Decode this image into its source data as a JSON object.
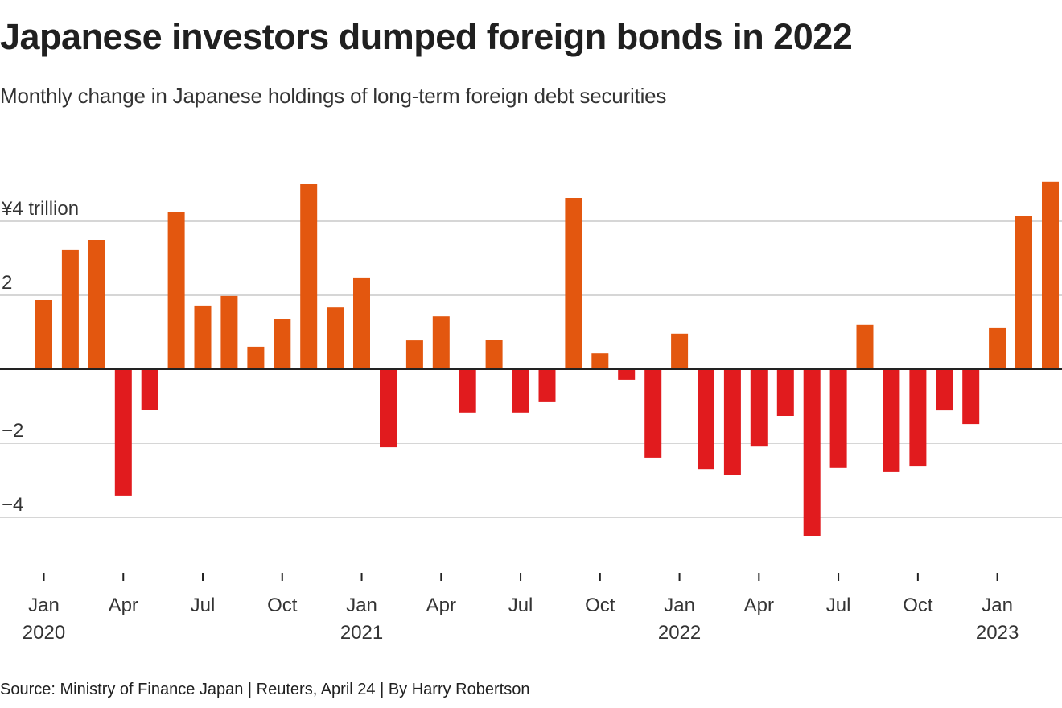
{
  "chart_data": {
    "type": "bar",
    "title": "Japanese investors dumped foreign bonds in 2022",
    "subtitle": "Monthly change in Japanese holdings of long-term foreign debt securities",
    "source": "Source: Ministry of Finance Japan | Reuters, April 24 | By Harry Robertson",
    "xlabel": "",
    "ylabel": "¥ trillion",
    "ylim": [
      -5,
      5.5
    ],
    "grid": true,
    "legend": "none",
    "y_ticks": [
      {
        "value": 4,
        "label": "¥4 trillion"
      },
      {
        "value": 2,
        "label": "2"
      },
      {
        "value": 0,
        "label": ""
      },
      {
        "value": -2,
        "label": "−2"
      },
      {
        "value": -4,
        "label": "−4"
      }
    ],
    "x_ticks": [
      {
        "index": 0,
        "label": "Jan",
        "sublabel": "2020"
      },
      {
        "index": 3,
        "label": "Apr",
        "sublabel": ""
      },
      {
        "index": 6,
        "label": "Jul",
        "sublabel": ""
      },
      {
        "index": 9,
        "label": "Oct",
        "sublabel": ""
      },
      {
        "index": 12,
        "label": "Jan",
        "sublabel": "2021"
      },
      {
        "index": 15,
        "label": "Apr",
        "sublabel": ""
      },
      {
        "index": 18,
        "label": "Jul",
        "sublabel": ""
      },
      {
        "index": 21,
        "label": "Oct",
        "sublabel": ""
      },
      {
        "index": 24,
        "label": "Jan",
        "sublabel": "2022"
      },
      {
        "index": 27,
        "label": "Apr",
        "sublabel": ""
      },
      {
        "index": 30,
        "label": "Jul",
        "sublabel": ""
      },
      {
        "index": 33,
        "label": "Oct",
        "sublabel": ""
      },
      {
        "index": 36,
        "label": "Jan",
        "sublabel": "2023"
      }
    ],
    "categories": [
      "2020-01",
      "2020-02",
      "2020-03",
      "2020-04",
      "2020-05",
      "2020-06",
      "2020-07",
      "2020-08",
      "2020-09",
      "2020-10",
      "2020-11",
      "2020-12",
      "2021-01",
      "2021-02",
      "2021-03",
      "2021-04",
      "2021-05",
      "2021-06",
      "2021-07",
      "2021-08",
      "2021-09",
      "2021-10",
      "2021-11",
      "2021-12",
      "2022-01",
      "2022-02",
      "2022-03",
      "2022-04",
      "2022-05",
      "2022-06",
      "2022-07",
      "2022-08",
      "2022-09",
      "2022-10",
      "2022-11",
      "2022-12",
      "2023-01",
      "2023-02",
      "2023-03"
    ],
    "values": [
      1.87,
      3.22,
      3.5,
      -3.41,
      -1.1,
      4.24,
      1.72,
      1.98,
      0.61,
      1.37,
      5.0,
      1.67,
      2.48,
      -2.11,
      0.78,
      1.43,
      -1.17,
      0.8,
      -1.17,
      -0.89,
      4.63,
      0.43,
      -0.28,
      -2.39,
      0.96,
      -2.7,
      -2.85,
      -2.07,
      -1.26,
      -4.5,
      -2.67,
      1.2,
      -2.78,
      -2.61,
      -1.11,
      -1.48,
      1.11,
      4.13,
      5.07
    ],
    "colors": {
      "positive": "#E3570F",
      "negative": "#E11B1E",
      "gridline": "#C8C8C8",
      "zero_line": "#222222"
    }
  }
}
